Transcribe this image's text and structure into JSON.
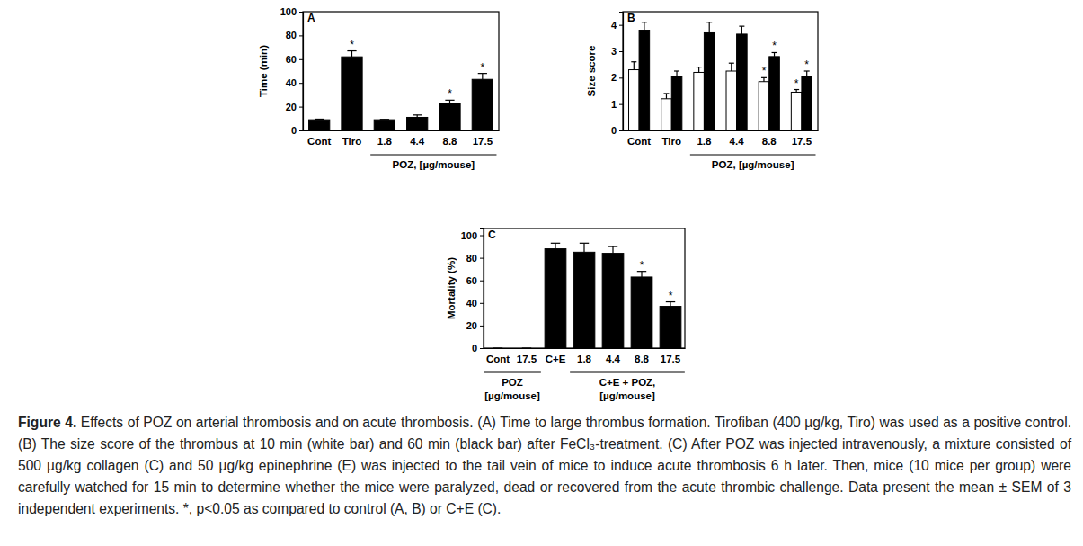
{
  "chart_data": [
    {
      "type": "bar",
      "title": "A",
      "y_label": "Time (min)",
      "categories": [
        "Cont",
        "Tiro",
        "1.8",
        "4.4",
        "8.8",
        "17.5"
      ],
      "values": [
        9,
        62,
        9,
        11,
        23,
        43
      ],
      "errors": [
        0.5,
        5,
        0.3,
        2,
        2.5,
        5
      ],
      "significance": [
        null,
        "*",
        null,
        null,
        "*",
        "*"
      ],
      "color": "#000000",
      "ylim": [
        0,
        100
      ],
      "yticks": [
        0,
        20,
        40,
        60,
        80,
        100
      ],
      "groups": [
        {
          "label": [
            "POZ, [µg/mouse]"
          ],
          "from": 2,
          "to": 5
        }
      ]
    },
    {
      "type": "bar",
      "title": "B",
      "y_label": "Size score",
      "categories": [
        "Cont",
        "Tiro",
        "1.8",
        "4.4",
        "8.8",
        "17.5"
      ],
      "series": [
        {
          "color": "#ffffff",
          "values": [
            2.3,
            1.2,
            2.2,
            2.25,
            1.85,
            1.45
          ],
          "errors": [
            0.3,
            0.2,
            0.2,
            0.3,
            0.15,
            0.1
          ],
          "significance": [
            null,
            null,
            null,
            null,
            "*",
            "*"
          ]
        },
        {
          "color": "#000000",
          "values": [
            3.8,
            2.05,
            3.7,
            3.65,
            2.8,
            2.05
          ],
          "errors": [
            0.3,
            0.2,
            0.4,
            0.3,
            0.15,
            0.2
          ],
          "significance": [
            null,
            null,
            null,
            null,
            "*",
            "*"
          ]
        }
      ],
      "ylim": [
        0,
        4.5
      ],
      "yticks": [
        0,
        1,
        2,
        3,
        4
      ],
      "groups": [
        {
          "label": [
            "POZ, [µg/mouse]"
          ],
          "from": 2,
          "to": 5
        }
      ]
    },
    {
      "type": "bar",
      "title": "C",
      "y_label": "Mortality (%)",
      "categories": [
        "Cont",
        "17.5",
        "C+E",
        "1.8",
        "4.4",
        "8.8",
        "17.5"
      ],
      "values": [
        0,
        0,
        88,
        85,
        84,
        63,
        37
      ],
      "errors": [
        0,
        0,
        5,
        8,
        6,
        5,
        4
      ],
      "significance": [
        null,
        null,
        null,
        null,
        null,
        "*",
        "*"
      ],
      "color": "#000000",
      "ylim": [
        0,
        106
      ],
      "yticks": [
        0,
        20,
        40,
        60,
        80,
        100
      ],
      "groups": [
        {
          "label": [
            "POZ",
            "[µg/mouse]"
          ],
          "from": 0,
          "to": 1
        },
        {
          "label": [
            "C+E + POZ,",
            "[µg/mouse]"
          ],
          "from": 3,
          "to": 6
        }
      ]
    }
  ],
  "caption": {
    "label": "Figure 4.",
    "text": " Effects of POZ on arterial thrombosis and on acute thrombosis. (A) Time to large thrombus formation. Tirofiban (400 µg/kg, Tiro) was used as a positive control. (B) The size score of the thrombus at 10 min (white bar) and 60 min (black bar) after FeCl₃-treatment. (C) After POZ was injected intravenously, a mixture consisted of 500 µg/kg collagen (C) and 50 µg/kg epinephrine (E) was injected to the tail vein of mice to induce acute thrombosis 6 h later. Then, mice (10 mice per group) were carefully watched for 15 min to determine whether the mice were paralyzed, dead or recovered from the acute thrombic challenge. Data present the mean ± SEM of 3 independent experiments. *, p<0.05 as compared to control (A, B) or C+E (C)."
  }
}
